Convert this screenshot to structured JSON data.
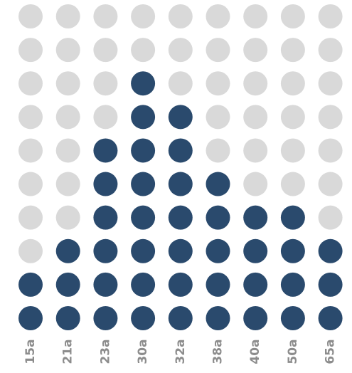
{
  "chart_data": {
    "type": "dot",
    "categories": [
      "15a",
      "21a",
      "23a",
      "30a",
      "32a",
      "38a",
      "40a",
      "50a",
      "65a"
    ],
    "values": [
      2,
      3,
      6,
      8,
      7,
      5,
      4,
      4,
      3
    ],
    "ylim": [
      0,
      10
    ],
    "color": "#2a4a6d",
    "empty_color": "#d9d9d9"
  }
}
